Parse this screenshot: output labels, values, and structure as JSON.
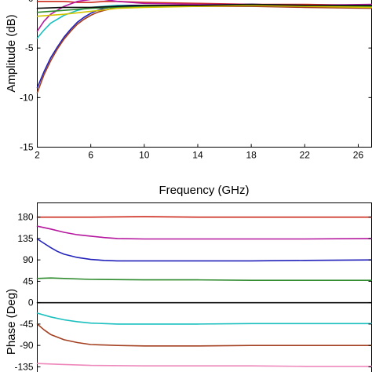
{
  "chart_data": [
    {
      "type": "line",
      "title": "",
      "xlabel": "Frequency (GHz)",
      "ylabel": "Amplitude (dB)",
      "xlim": [
        2,
        27
      ],
      "ylim": [
        -15,
        0
      ],
      "xticks": [
        "2",
        "6",
        "10",
        "14",
        "18",
        "22",
        "26"
      ],
      "yticks": [
        "0",
        "-5",
        "-10",
        "-15"
      ],
      "grid": false,
      "legend": "none",
      "series": [
        {
          "color": "#cc2b1d",
          "x": [
            2,
            3,
            4,
            5,
            6,
            7,
            8,
            10,
            14,
            18,
            22,
            27
          ],
          "y": [
            -0.3,
            -0.3,
            -0.3,
            -0.4,
            -0.4,
            -0.3,
            -0.3,
            -0.4,
            -0.5,
            -0.6,
            -0.6,
            -0.7
          ]
        },
        {
          "color": "#b5179e",
          "x": [
            2,
            2.5,
            3,
            4,
            5,
            6,
            7,
            8,
            10,
            14,
            18,
            22,
            27
          ],
          "y": [
            -3.3,
            -2.3,
            -1.6,
            -0.8,
            -0.3,
            -0.1,
            -0.1,
            -0.3,
            -0.5,
            -0.6,
            -0.6,
            -0.7,
            -0.6
          ]
        },
        {
          "color": "#19bfbf",
          "x": [
            2,
            2.5,
            3,
            4,
            5,
            6,
            7,
            8,
            10,
            14,
            18,
            22,
            27
          ],
          "y": [
            -4.0,
            -3.2,
            -2.5,
            -1.7,
            -1.2,
            -0.9,
            -0.8,
            -0.7,
            -0.7,
            -0.7,
            -0.8,
            -0.8,
            -0.8
          ]
        },
        {
          "color": "#2222bb",
          "x": [
            2,
            2.5,
            3,
            3.5,
            4,
            4.5,
            5,
            5.5,
            6,
            6.5,
            7,
            8,
            9,
            10,
            14,
            18,
            22,
            27
          ],
          "y": [
            -9.0,
            -7.4,
            -6.0,
            -4.9,
            -3.9,
            -3.1,
            -2.4,
            -1.9,
            -1.5,
            -1.2,
            -1.0,
            -0.8,
            -0.7,
            -0.7,
            -0.7,
            -0.6,
            -0.7,
            -0.8
          ]
        },
        {
          "color": "#a33f1f",
          "x": [
            2,
            2.5,
            3,
            3.5,
            4,
            4.5,
            5,
            5.5,
            6,
            6.5,
            7,
            8,
            9,
            10,
            14,
            18,
            22,
            27
          ],
          "y": [
            -9.5,
            -7.7,
            -6.3,
            -5.1,
            -4.1,
            -3.3,
            -2.6,
            -2.1,
            -1.7,
            -1.4,
            -1.2,
            -0.9,
            -0.8,
            -0.8,
            -0.8,
            -0.8,
            -0.9,
            -1.0
          ]
        },
        {
          "color": "#2e8b2e",
          "x": [
            2,
            4,
            6,
            8,
            10,
            14,
            18,
            22,
            27
          ],
          "y": [
            -1.4,
            -1.2,
            -1.0,
            -0.9,
            -0.8,
            -0.7,
            -0.7,
            -0.8,
            -0.8
          ]
        },
        {
          "color": "#d4c400",
          "x": [
            2,
            4,
            6,
            8,
            10,
            14,
            18,
            22,
            27
          ],
          "y": [
            -1.8,
            -1.6,
            -1.3,
            -1.0,
            -0.9,
            -0.8,
            -0.7,
            -0.8,
            -0.9
          ]
        },
        {
          "color": "#111111",
          "x": [
            2,
            4,
            6,
            8,
            10,
            14,
            18,
            22,
            27
          ],
          "y": [
            -1.0,
            -0.9,
            -0.9,
            -0.8,
            -0.7,
            -0.7,
            -0.6,
            -0.7,
            -0.7
          ]
        }
      ]
    },
    {
      "type": "line",
      "title": "",
      "xlabel": "",
      "ylabel": "Phase (Deg)",
      "xlim": [
        2,
        27
      ],
      "ylim": [
        -150,
        210
      ],
      "yticks": [
        "180",
        "135",
        "90",
        "45",
        "0",
        "-45",
        "-90",
        "-135"
      ],
      "grid": false,
      "legend": "none",
      "series": [
        {
          "color": "#cc2b1d",
          "x": [
            2,
            6,
            10,
            14,
            18,
            22,
            27
          ],
          "y": [
            180,
            180,
            181,
            180,
            180,
            180,
            180
          ]
        },
        {
          "color": "#b5179e",
          "x": [
            2,
            3,
            4,
            5,
            6,
            7,
            8,
            10,
            14,
            18,
            22,
            27
          ],
          "y": [
            161,
            155,
            148,
            143,
            140,
            137,
            135,
            134,
            134,
            134,
            134,
            135
          ]
        },
        {
          "color": "#2222bb",
          "x": [
            2,
            2.5,
            3,
            3.5,
            4,
            5,
            6,
            7,
            8,
            10,
            14,
            18,
            22,
            27
          ],
          "y": [
            134,
            125,
            116,
            108,
            102,
            95,
            91,
            89,
            88,
            88,
            88,
            88,
            89,
            90
          ]
        },
        {
          "color": "#2e8b2e",
          "x": [
            2,
            3,
            4,
            6,
            10,
            14,
            18,
            22,
            27
          ],
          "y": [
            51,
            52,
            51,
            49,
            48,
            48,
            47,
            47,
            47
          ]
        },
        {
          "color": "#111111",
          "x": [
            2,
            6,
            10,
            14,
            18,
            22,
            27
          ],
          "y": [
            0,
            0,
            0,
            0,
            0,
            0,
            0
          ]
        },
        {
          "color": "#19bfbf",
          "x": [
            2,
            3,
            4,
            5,
            6,
            7,
            8,
            10,
            14,
            18,
            22,
            27
          ],
          "y": [
            -22,
            -30,
            -36,
            -40,
            -43,
            -44,
            -45,
            -45,
            -45,
            -44,
            -44,
            -44
          ]
        },
        {
          "color": "#a33f1f",
          "x": [
            2,
            2.5,
            3,
            4,
            5,
            6,
            7,
            8,
            10,
            14,
            18,
            22,
            27
          ],
          "y": [
            -45,
            -57,
            -67,
            -78,
            -84,
            -88,
            -89,
            -90,
            -91,
            -91,
            -90,
            -90,
            -90
          ]
        },
        {
          "color": "#ee88bb",
          "x": [
            2,
            4,
            6,
            10,
            14,
            18,
            22,
            27
          ],
          "y": [
            -128,
            -130,
            -132,
            -133,
            -133,
            -133,
            -134,
            -134
          ]
        }
      ]
    }
  ]
}
